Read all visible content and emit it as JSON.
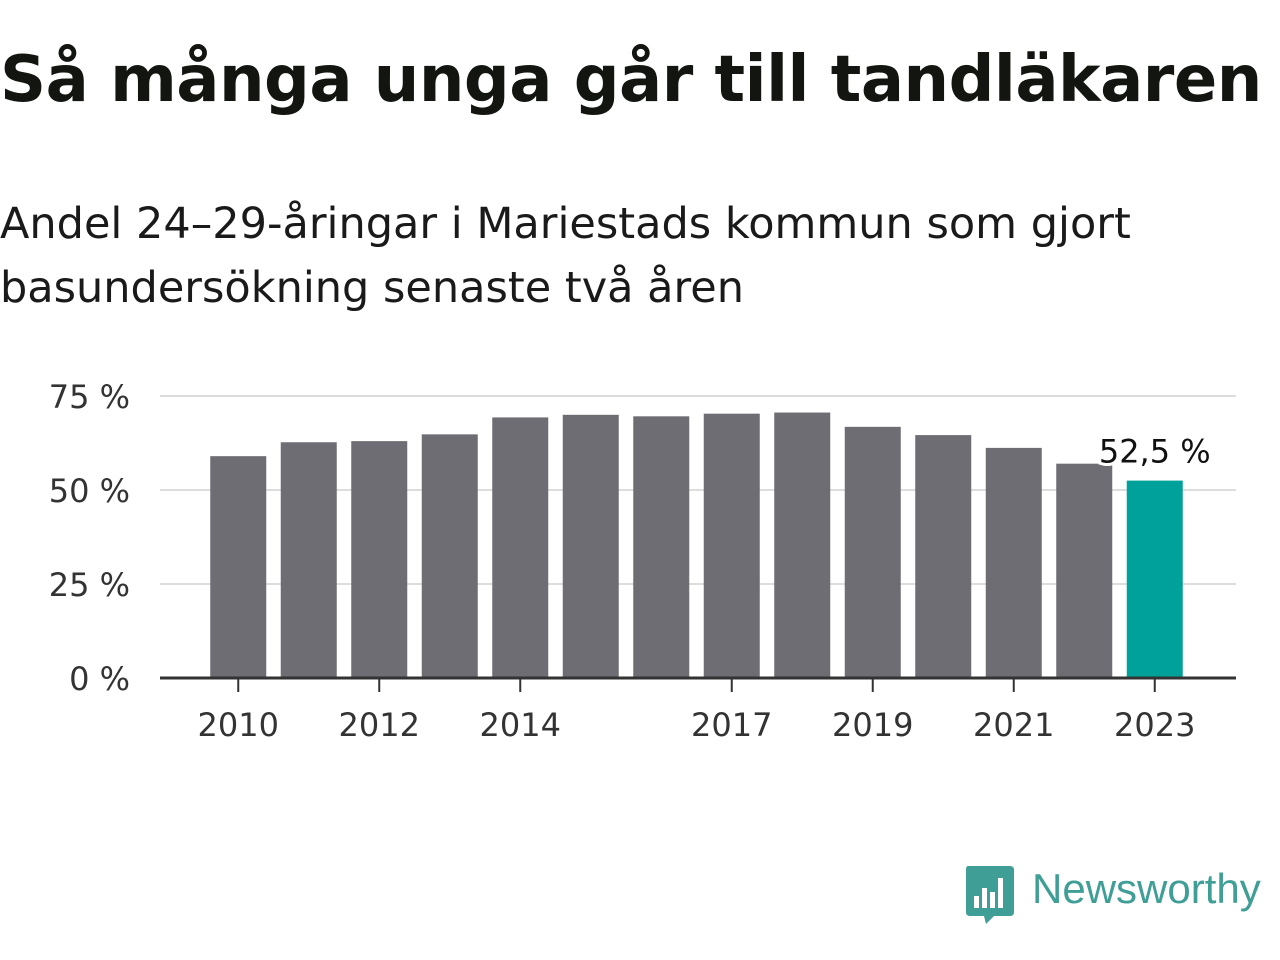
{
  "chart_data": {
    "type": "bar",
    "title": "Så många unga går till tandläkaren",
    "subtitle": "Andel 24–29-åringar i Mariestads kommun som gjort basundersökning senaste två åren",
    "categories": [
      "2010",
      "2011",
      "2012",
      "2013",
      "2014",
      "2015",
      "2016",
      "2017",
      "2018",
      "2019",
      "2020",
      "2021",
      "2022",
      "2023"
    ],
    "values": [
      59.0,
      62.7,
      63.0,
      64.8,
      69.3,
      70.0,
      69.6,
      70.3,
      70.6,
      66.8,
      64.6,
      61.2,
      57.0,
      52.5
    ],
    "x_tick_labels": [
      "2010",
      "2012",
      "2014",
      "2017",
      "2019",
      "2021",
      "2023"
    ],
    "y_ticks": [
      0,
      25,
      50,
      75
    ],
    "y_tick_labels": [
      "0 %",
      "25 %",
      "50 %",
      "75 %"
    ],
    "ylim": [
      0,
      75
    ],
    "grid": true,
    "highlight_index": 13,
    "highlight_label": "52,5 %",
    "bar_color": "#6e6d73",
    "highlight_color": "#00a19a",
    "grid_color": "#dddddd",
    "axis_color": "#333333"
  },
  "brand": {
    "name": "Newsworthy",
    "color": "#3f9e96",
    "icon": "bar-chart-speech-bubble-icon"
  }
}
